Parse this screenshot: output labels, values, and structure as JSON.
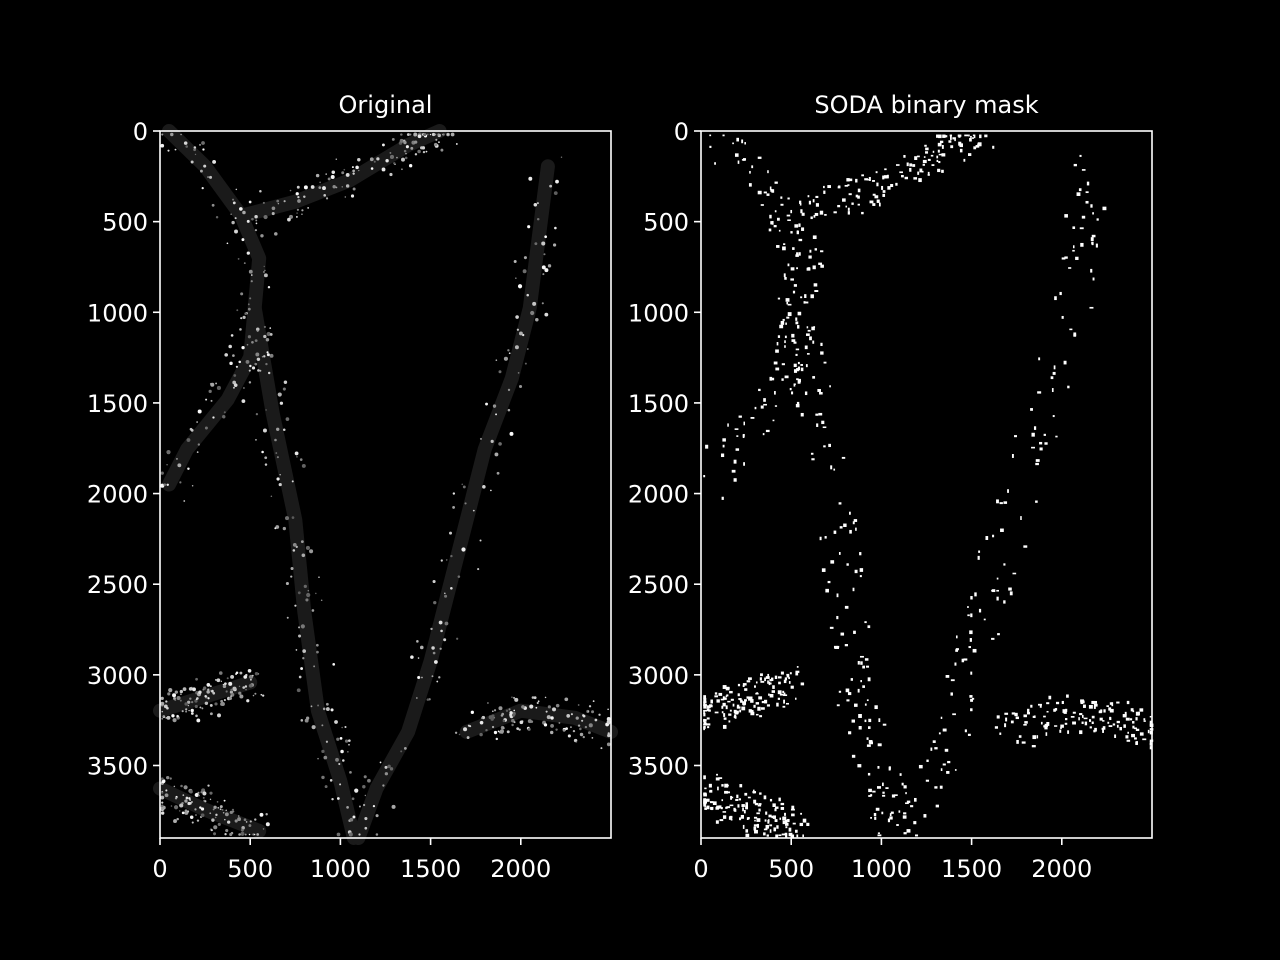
{
  "figure": {
    "background": "#000000",
    "foreground": "#ffffff"
  },
  "chart_data": [
    {
      "type": "heatmap",
      "title": "Original",
      "xlabel": "",
      "ylabel": "",
      "xlim": [
        0,
        2500
      ],
      "ylim": [
        3900,
        0
      ],
      "xticks": [
        0,
        500,
        1000,
        1500,
        2000
      ],
      "yticks": [
        0,
        500,
        1000,
        1500,
        2000,
        2500,
        3000,
        3500
      ],
      "colormap": "gray",
      "image_shape": [
        3900,
        2500
      ],
      "content": "grayscale fluorescence micrograph of punctate spots along branching filament structures on a black background",
      "grid": false
    },
    {
      "type": "heatmap",
      "title": "SODA binary mask",
      "xlabel": "",
      "ylabel": "",
      "xlim": [
        0,
        2500
      ],
      "ylim": [
        3900,
        0
      ],
      "xticks": [
        0,
        500,
        1000,
        1500,
        2000
      ],
      "yticks": [
        0,
        500,
        1000,
        1500,
        2000,
        2500,
        3000,
        3500
      ],
      "colormap": "binary (white = 1, black = 0)",
      "image_shape": [
        3900,
        2500
      ],
      "content": "binary mask of detected spots shown as small white blobs on black",
      "grid": false
    }
  ]
}
